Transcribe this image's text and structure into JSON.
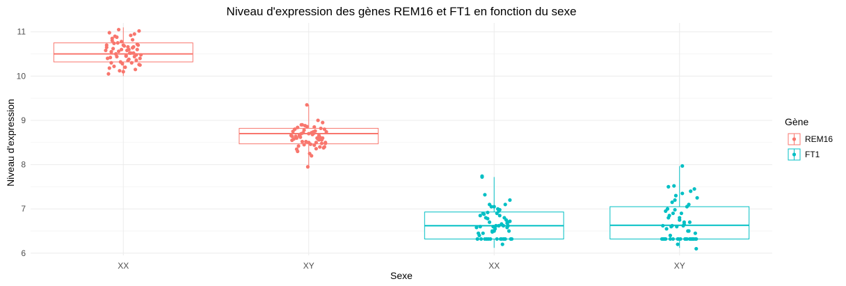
{
  "chart_data": {
    "type": "boxplot",
    "title": "Niveau d'expression des gènes REM16 et FT1 en fonction du sexe",
    "xlabel": "Sexe",
    "ylabel": "Niveau d'expression",
    "categories": [
      "XX",
      "XY",
      "XX",
      "XY"
    ],
    "ylim": [
      5.95,
      11.2
    ],
    "yticks": [
      6,
      7,
      8,
      9,
      10,
      11
    ],
    "grid": true,
    "legend": {
      "title": "Gène",
      "placement": "right",
      "entries": [
        {
          "label": "REM16",
          "color": "#F8766D"
        },
        {
          "label": "FT1",
          "color": "#00BFC4"
        }
      ]
    },
    "boxes": [
      {
        "category_index": 0,
        "gene": "REM16",
        "color": "#F8766D",
        "whisker_low": 10.0,
        "q1": 10.32,
        "median": 10.5,
        "q3": 10.75,
        "whisker_high": 11.1
      },
      {
        "category_index": 1,
        "gene": "REM16",
        "color": "#F8766D",
        "whisker_low": 7.95,
        "q1": 8.47,
        "median": 8.7,
        "q3": 8.82,
        "whisker_high": 9.35
      },
      {
        "category_index": 2,
        "gene": "FT1",
        "color": "#00BFC4",
        "whisker_low": 6.12,
        "q1": 6.32,
        "median": 6.62,
        "q3": 6.93,
        "whisker_high": 7.72
      },
      {
        "category_index": 3,
        "gene": "FT1",
        "color": "#00BFC4",
        "whisker_low": 6.12,
        "q1": 6.32,
        "median": 6.63,
        "q3": 7.05,
        "whisker_high": 7.97
      }
    ],
    "points": [
      {
        "category_index": 0,
        "color": "#F8766D",
        "jitter": [
          -0.18,
          -0.15,
          -0.12,
          -0.1,
          -0.08,
          -0.05,
          -0.02,
          0.0,
          0.03,
          0.06,
          0.09,
          0.12,
          0.15,
          0.18,
          -0.17,
          -0.13,
          -0.09,
          -0.04,
          0.01,
          0.05,
          0.1,
          0.14,
          0.17,
          -0.16,
          -0.11,
          -0.06,
          -0.01,
          0.04,
          0.08,
          0.13,
          0.16,
          -0.14,
          -0.07,
          0.02,
          0.07,
          0.11,
          -0.19,
          -0.03,
          0.19,
          0.15,
          -0.12,
          0.06,
          -0.08,
          0.1,
          -0.15,
          0.0,
          0.12,
          -0.05,
          0.17,
          -0.1,
          0.03,
          0.14,
          -0.18,
          0.08,
          -0.02,
          0.18,
          -0.13,
          0.05,
          0.11,
          -0.07
        ],
        "values": [
          10.65,
          10.98,
          10.85,
          10.22,
          10.5,
          11.05,
          10.78,
          10.1,
          10.45,
          10.6,
          10.3,
          10.95,
          10.72,
          10.25,
          10.4,
          10.55,
          10.9,
          10.12,
          10.68,
          10.35,
          10.82,
          10.48,
          11.02,
          10.05,
          10.62,
          10.75,
          10.28,
          10.58,
          10.92,
          10.15,
          10.7,
          10.42,
          10.88,
          10.2,
          10.52,
          10.66,
          10.58,
          10.32,
          10.48,
          10.6,
          10.8,
          10.38,
          10.5,
          10.64,
          10.18,
          10.7,
          10.44,
          10.56,
          10.26,
          10.74,
          10.46,
          10.36,
          10.7,
          10.52,
          10.6,
          10.4,
          10.3,
          10.66,
          10.52,
          10.44
        ]
      },
      {
        "category_index": 1,
        "color": "#F8766D",
        "jitter": [
          -0.18,
          -0.15,
          -0.12,
          -0.1,
          -0.08,
          -0.05,
          -0.02,
          0.0,
          0.03,
          0.06,
          0.09,
          0.12,
          0.15,
          0.18,
          -0.17,
          -0.13,
          -0.09,
          -0.04,
          0.01,
          0.05,
          0.1,
          0.14,
          0.17,
          -0.16,
          -0.11,
          -0.06,
          -0.01,
          0.04,
          0.08,
          0.13,
          0.16,
          -0.14,
          -0.07,
          0.02,
          0.07,
          0.11,
          -0.19,
          -0.03,
          0.19,
          0.15,
          -0.12,
          0.06,
          -0.08,
          0.1,
          -0.15,
          0.0,
          0.12,
          -0.05,
          0.17,
          -0.1,
          0.03,
          0.14,
          -0.18,
          0.08,
          -0.02,
          0.18,
          -0.13,
          0.05,
          0.11,
          -0.07
        ],
        "values": [
          8.55,
          8.8,
          8.3,
          8.65,
          8.9,
          8.45,
          9.35,
          8.7,
          8.2,
          8.85,
          8.6,
          8.4,
          8.95,
          8.5,
          8.75,
          8.35,
          8.62,
          8.88,
          8.25,
          8.7,
          9.0,
          8.48,
          8.8,
          8.58,
          8.42,
          8.72,
          7.95,
          8.68,
          8.5,
          8.82,
          8.38,
          8.64,
          8.9,
          8.46,
          8.76,
          8.56,
          8.66,
          8.52,
          8.74,
          8.6,
          8.84,
          8.44,
          8.7,
          8.58,
          8.8,
          8.5,
          8.62,
          8.78,
          8.4,
          8.68,
          8.72,
          8.56,
          8.64,
          8.36,
          8.86,
          8.48,
          8.6,
          8.74,
          8.66,
          8.52
        ]
      },
      {
        "category_index": 2,
        "color": "#00BFC4",
        "jitter": [
          -0.18,
          -0.15,
          -0.12,
          -0.1,
          -0.08,
          -0.05,
          -0.02,
          0.0,
          0.03,
          0.06,
          0.09,
          0.12,
          0.15,
          0.18,
          -0.17,
          -0.13,
          -0.09,
          -0.04,
          0.01,
          0.05,
          0.1,
          0.14,
          0.17,
          -0.16,
          -0.11,
          -0.06,
          -0.01,
          0.04,
          0.08,
          0.13,
          0.16,
          -0.14,
          -0.07,
          0.02,
          0.07,
          0.11,
          -0.19,
          -0.03,
          0.19,
          0.15,
          -0.12,
          0.06,
          -0.08,
          0.1,
          -0.15,
          0.0,
          0.12,
          -0.05,
          0.17,
          -0.1,
          0.03,
          0.14,
          -0.18,
          0.08,
          -0.02,
          0.18,
          -0.13,
          0.05,
          0.11,
          -0.07
        ],
        "values": [
          6.32,
          6.6,
          6.9,
          7.32,
          6.32,
          6.7,
          6.5,
          7.05,
          6.32,
          6.85,
          6.2,
          7.1,
          6.62,
          6.32,
          6.45,
          7.72,
          6.8,
          6.32,
          6.55,
          6.95,
          6.32,
          6.68,
          7.2,
          6.4,
          6.88,
          6.32,
          6.6,
          7.0,
          6.32,
          6.75,
          6.5,
          6.32,
          6.92,
          6.62,
          6.32,
          6.8,
          6.58,
          7.05,
          6.32,
          6.7,
          6.45,
          6.98,
          6.32,
          6.62,
          6.85,
          6.5,
          6.32,
          7.1,
          6.72,
          6.32,
          6.9,
          6.58,
          6.32,
          6.66,
          6.48,
          6.32,
          7.74,
          6.62,
          6.32,
          6.78
        ]
      },
      {
        "category_index": 3,
        "color": "#00BFC4",
        "jitter": [
          -0.18,
          -0.15,
          -0.12,
          -0.1,
          -0.08,
          -0.05,
          -0.02,
          0.0,
          0.03,
          0.06,
          0.09,
          0.12,
          0.15,
          0.18,
          -0.17,
          -0.13,
          -0.09,
          -0.04,
          0.01,
          0.05,
          0.1,
          0.14,
          0.17,
          -0.16,
          -0.11,
          -0.06,
          -0.01,
          0.04,
          0.08,
          0.13,
          0.16,
          -0.14,
          -0.07,
          0.02,
          0.07,
          0.11,
          -0.19,
          -0.03,
          0.19,
          0.15,
          -0.12,
          0.06,
          -0.08,
          0.1,
          -0.15,
          0.0,
          0.12,
          -0.05,
          0.17,
          -0.1,
          0.03,
          0.14,
          -0.18,
          0.08,
          -0.02,
          0.18,
          -0.13,
          0.05,
          0.11,
          -0.07
        ],
        "values": [
          6.32,
          6.95,
          7.5,
          6.32,
          6.62,
          7.2,
          6.32,
          6.8,
          7.97,
          6.32,
          6.5,
          7.4,
          6.32,
          6.1,
          6.32,
          7.0,
          6.6,
          7.3,
          6.32,
          6.7,
          7.1,
          6.32,
          6.45,
          6.32,
          6.85,
          7.52,
          6.32,
          6.62,
          7.05,
          6.32,
          7.45,
          6.55,
          6.32,
          6.9,
          6.32,
          6.7,
          6.32,
          6.6,
          7.25,
          6.32,
          6.8,
          6.32,
          7.15,
          6.5,
          6.32,
          6.75,
          6.32,
          6.98,
          6.32,
          6.4,
          7.35,
          6.32,
          6.62,
          6.32,
          6.2,
          6.32,
          7.0,
          6.65,
          6.32,
          6.9
        ]
      }
    ]
  }
}
